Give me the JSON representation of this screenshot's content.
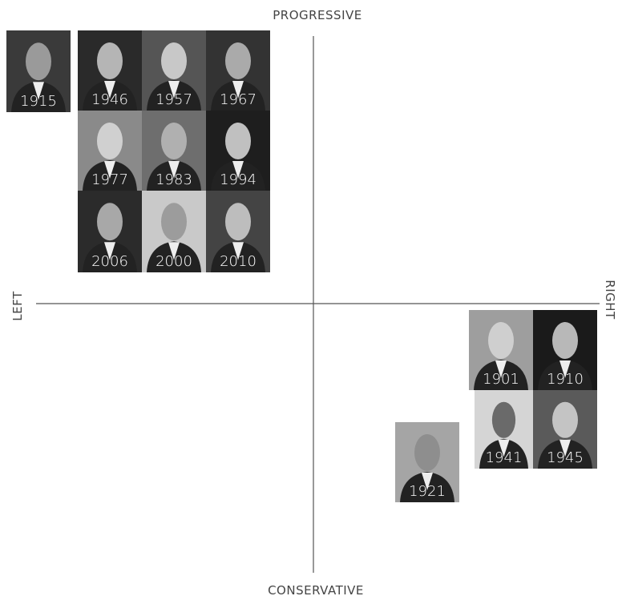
{
  "axes": {
    "top": "PROGRESSIVE",
    "bottom": "CONSERVATIVE",
    "left": "LEFT",
    "right": "RIGHT"
  },
  "portraits": [
    "1915",
    "1946",
    "1957",
    "1967",
    "1977",
    "1983",
    "1994",
    "2006",
    "2000",
    "2010",
    "1901",
    "1910",
    "1941",
    "1945",
    "1921"
  ]
}
